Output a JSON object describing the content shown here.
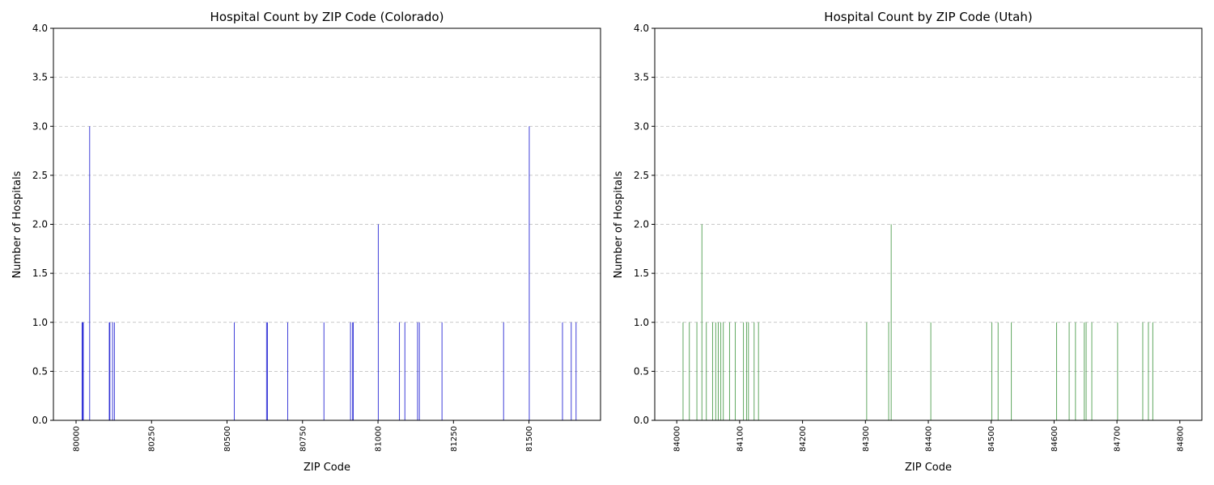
{
  "chart_data": [
    {
      "type": "bar",
      "title": "Hospital Count by ZIP Code (Colorado)",
      "xlabel": "ZIP Code",
      "ylabel": "Number of Hospitals",
      "xlim": [
        79925,
        81737
      ],
      "ylim": [
        0,
        4
      ],
      "xticks": [
        "80000",
        "80250",
        "80500",
        "80750",
        "81000",
        "81250",
        "81500"
      ],
      "yticks": [
        "0.0",
        "0.5",
        "1.0",
        "1.5",
        "2.0",
        "2.5",
        "3.0",
        "3.5",
        "4.0"
      ],
      "grid": "y-dashed",
      "color": "#0000cc",
      "x": [
        80020,
        80022,
        80024,
        80045,
        80110,
        80112,
        80121,
        80127,
        80524,
        80631,
        80634,
        80701,
        80821,
        80909,
        80916,
        80918,
        81001,
        81071,
        81089,
        81131,
        81137,
        81212,
        81416,
        81501,
        81611,
        81640,
        81656
      ],
      "values": [
        1,
        1,
        1,
        3,
        1,
        1,
        1,
        1,
        1,
        1,
        1,
        1,
        1,
        1,
        1,
        1,
        2,
        1,
        1,
        1,
        1,
        1,
        1,
        3,
        1,
        1,
        1
      ]
    },
    {
      "type": "bar",
      "title": "Hospital Count by ZIP Code (Utah)",
      "xlabel": "ZIP Code",
      "ylabel": "Number of Hospitals",
      "xlim": [
        83965,
        84835
      ],
      "ylim": [
        0,
        4
      ],
      "xticks": [
        "84000",
        "84100",
        "84200",
        "84300",
        "84400",
        "84500",
        "84600",
        "84700",
        "84800"
      ],
      "yticks": [
        "0.0",
        "0.5",
        "1.0",
        "1.5",
        "2.0",
        "2.5",
        "3.0",
        "3.5",
        "4.0"
      ],
      "grid": "y-dashed",
      "color": "#2e8b2e",
      "x": [
        84010,
        84020,
        84032,
        84040,
        84047,
        84057,
        84062,
        84066,
        84070,
        84074,
        84084,
        84093,
        84106,
        84111,
        84114,
        84123,
        84130,
        84302,
        84337,
        84341,
        84404,
        84501,
        84511,
        84532,
        84604,
        84624,
        84634,
        84648,
        84651,
        84660,
        84701,
        84741,
        84750,
        84757
      ],
      "values": [
        1,
        1,
        1,
        2,
        1,
        1,
        1,
        1,
        1,
        1,
        1,
        1,
        1,
        1,
        1,
        1,
        1,
        1,
        1,
        2,
        1,
        1,
        1,
        1,
        1,
        1,
        1,
        1,
        1,
        1,
        1,
        1,
        1,
        1
      ]
    }
  ]
}
